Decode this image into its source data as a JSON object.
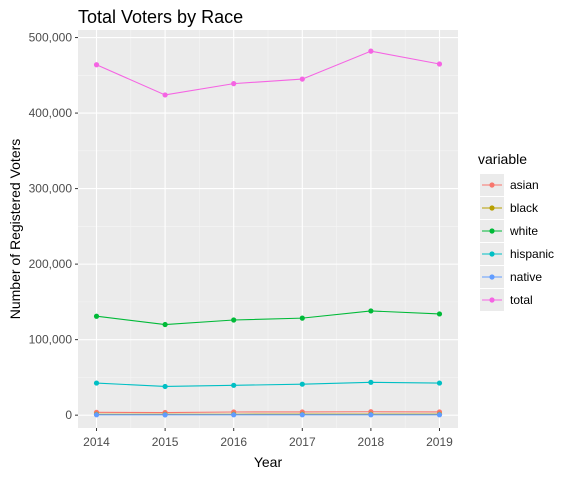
{
  "chart_data": {
    "type": "line",
    "title": "Total Voters by Race",
    "xlabel": "Year",
    "ylabel": "Number of Registered Voters",
    "x": [
      2014,
      2015,
      2016,
      2017,
      2018,
      2019
    ],
    "x_ticks": [
      "2014",
      "2015",
      "2016",
      "2017",
      "2018",
      "2019"
    ],
    "ylim": [
      -17000,
      510000
    ],
    "y_ticks": [
      0,
      100000,
      200000,
      300000,
      400000,
      500000
    ],
    "y_tick_labels": [
      "0",
      "100,000",
      "200,000",
      "300,000",
      "400,000",
      "500,000"
    ],
    "grid": true,
    "legend": {
      "title": "variable",
      "position": "right"
    },
    "series": [
      {
        "name": "asian",
        "color": "#F8766D",
        "values": [
          3800,
          3500,
          4200,
          4300,
          4500,
          4300
        ]
      },
      {
        "name": "black",
        "color": "#B79F00",
        "values": [
          1200,
          1100,
          1200,
          1300,
          1300,
          1300
        ]
      },
      {
        "name": "white",
        "color": "#00BA38",
        "values": [
          131000,
          120000,
          126000,
          128500,
          138000,
          134000
        ]
      },
      {
        "name": "hispanic",
        "color": "#00BFC4",
        "values": [
          42500,
          38000,
          39500,
          41000,
          43500,
          42500
        ]
      },
      {
        "name": "native",
        "color": "#619CFF",
        "values": [
          500,
          400,
          500,
          500,
          500,
          500
        ]
      },
      {
        "name": "total",
        "color": "#F564E3",
        "values": [
          464000,
          424000,
          439000,
          445000,
          482000,
          465000
        ]
      }
    ]
  }
}
